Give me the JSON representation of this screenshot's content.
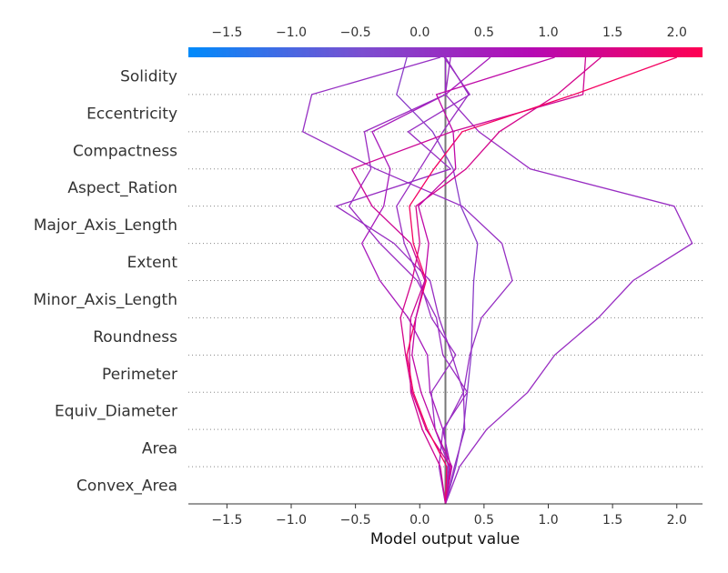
{
  "chart_data": {
    "type": "line",
    "subtype": "shap-decision-plot",
    "xlabel": "Model output value",
    "xlim": [
      -1.8,
      2.2
    ],
    "x_ticks": [
      -1.5,
      -1.0,
      -0.5,
      0.0,
      0.5,
      1.0,
      1.5,
      2.0
    ],
    "x_tick_labels": [
      "−1.5",
      "−1.0",
      "−0.5",
      "0.0",
      "0.5",
      "1.0",
      "1.5",
      "2.0"
    ],
    "colorbar_range": [
      -1.8,
      2.2
    ],
    "colormap": [
      "#008bfb",
      "#7a4fd0",
      "#b50ab4",
      "#ff0052"
    ],
    "base_value": 0.2,
    "base_line_color": "#777777",
    "features": [
      "Solidity",
      "Eccentricity",
      "Compactness",
      "Aspect_Ration",
      "Major_Axis_Length",
      "Extent",
      "Minor_Axis_Length",
      "Roundness",
      "Perimeter",
      "Equiv_Diameter",
      "Area",
      "Convex_Area"
    ],
    "series_order_note": "values listed from bottom boundary (Convex_Area start) to top (after Solidity)",
    "series": [
      {
        "values": [
          0.2,
          0.24,
          0.18,
          0.08,
          0.06,
          -0.09,
          -0.31,
          -0.45,
          -0.28,
          -0.23,
          -0.37,
          0.2,
          0.55
        ]
      },
      {
        "values": [
          0.2,
          0.28,
          0.34,
          0.37,
          0.4,
          0.41,
          0.42,
          0.45,
          0.32,
          0.26,
          0.1,
          -0.18,
          -0.1
        ]
      },
      {
        "values": [
          0.2,
          0.27,
          0.35,
          0.34,
          0.39,
          0.48,
          0.72,
          0.64,
          0.33,
          -0.34,
          -0.91,
          -0.84,
          0.16
        ]
      },
      {
        "values": [
          0.2,
          0.31,
          0.52,
          0.84,
          1.05,
          1.39,
          1.66,
          2.12,
          1.98,
          0.86,
          0.46,
          0.2,
          0.2
        ]
      },
      {
        "values": [
          0.2,
          0.15,
          0.18,
          0.37,
          0.18,
          0.13,
          -0.02,
          -0.31,
          -0.55,
          -0.38,
          -0.43,
          0.2,
          0.24
        ]
      },
      {
        "values": [
          0.2,
          0.22,
          0.19,
          0.34,
          0.25,
          0.15,
          0.08,
          -0.2,
          -0.65,
          0.24,
          -0.09,
          0.39,
          0.19
        ]
      },
      {
        "values": [
          0.2,
          0.23,
          0.12,
          0.09,
          0.28,
          0.09,
          0.0,
          -0.12,
          -0.18,
          0.0,
          0.18,
          0.38,
          0.2
        ]
      },
      {
        "values": [
          0.2,
          0.24,
          0.05,
          -0.06,
          -0.11,
          -0.15,
          -0.06,
          0.0,
          -0.03,
          0.36,
          0.62,
          1.07,
          1.41
        ]
      },
      {
        "values": [
          0.2,
          0.16,
          0.02,
          -0.07,
          -0.08,
          -0.07,
          0.04,
          -0.07,
          -0.37,
          -0.53,
          0.25,
          1.27,
          1.29
        ]
      },
      {
        "values": [
          0.2,
          0.21,
          0.06,
          -0.05,
          -0.1,
          -0.03,
          0.05,
          -0.05,
          -0.08,
          0.11,
          0.33,
          1.2,
          2.0
        ]
      },
      {
        "values": [
          0.2,
          0.25,
          0.12,
          0.01,
          -0.06,
          -0.03,
          0.04,
          0.07,
          -0.01,
          0.28,
          0.26,
          0.13,
          1.05
        ]
      }
    ]
  }
}
